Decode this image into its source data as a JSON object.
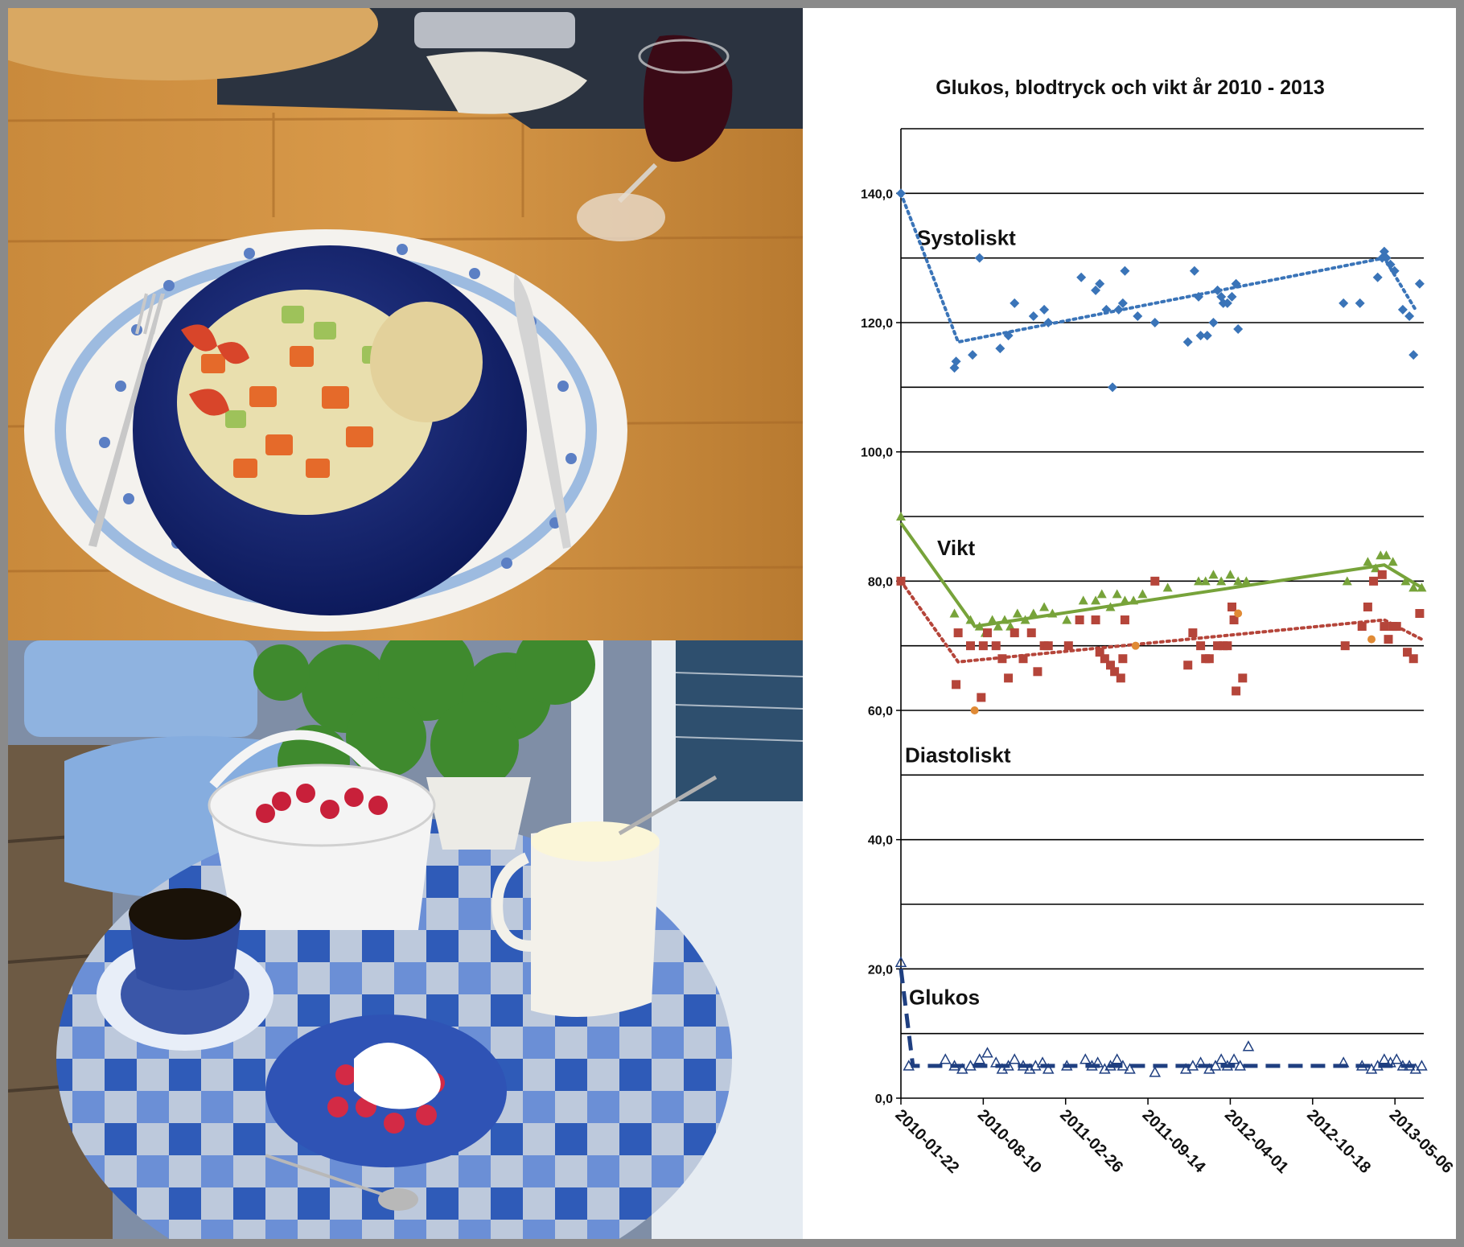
{
  "photos": {
    "top": {
      "subject": "dinner-plate"
    },
    "bottom": {
      "subject": "raspberries-and-coffee"
    }
  },
  "chart_data": {
    "type": "scatter",
    "title": "Glukos, blodtryck och vikt år 2010 - 2013",
    "xlabel": "",
    "ylabel": "",
    "ylim": [
      0,
      150
    ],
    "y_ticks": [
      "0,0",
      "20,0",
      "40,0",
      "60,0",
      "80,0",
      "100,0",
      "120,0",
      "140,0"
    ],
    "x_ticks": [
      "2010-01-22",
      "2010-08-10",
      "2011-02-26",
      "2011-09-14",
      "2012-04-01",
      "2012-10-18",
      "2013-05-06"
    ],
    "xlim": [
      "2010-01-22",
      "2013-07-15"
    ],
    "grid": true,
    "annotations": [
      "Systoliskt",
      "Vikt",
      "Diastoliskt",
      "Glukos"
    ],
    "colors": {
      "systolic": "#3a74b8",
      "weight": "#77a33a",
      "diastolic": "#b5453a",
      "diastolic_alt": "#e08a35",
      "glucose": "#1f3f80",
      "grid": "#000000"
    },
    "series": [
      {
        "key": "systolic",
        "marker": "diamond",
        "x": [
          "2010-01-22",
          "2010-06-01",
          "2010-06-05",
          "2010-07-15",
          "2010-08-01",
          "2010-09-20",
          "2010-10-10",
          "2010-10-25",
          "2010-12-10",
          "2011-01-05",
          "2011-01-15",
          "2011-04-05",
          "2011-05-10",
          "2011-05-20",
          "2011-06-05",
          "2011-06-20",
          "2011-07-05",
          "2011-07-15",
          "2011-07-20",
          "2011-08-20",
          "2011-10-01",
          "2011-12-20",
          "2012-01-05",
          "2012-01-15",
          "2012-01-20",
          "2012-02-05",
          "2012-02-20",
          "2012-03-01",
          "2012-03-10",
          "2012-03-15",
          "2012-03-25",
          "2012-04-05",
          "2012-04-15",
          "2012-04-20",
          "2013-01-01",
          "2013-02-10",
          "2013-03-25",
          "2013-04-05",
          "2013-04-10",
          "2013-04-15",
          "2013-04-25",
          "2013-05-05",
          "2013-05-25",
          "2013-06-10",
          "2013-06-20",
          "2013-07-05"
        ],
        "values": [
          140,
          113,
          114,
          115,
          130,
          116,
          118,
          123,
          121,
          122,
          120,
          127,
          125,
          126,
          122,
          110,
          122,
          123,
          128,
          121,
          120,
          117,
          128,
          124,
          118,
          118,
          120,
          125,
          124,
          123,
          123,
          124,
          126,
          119,
          123,
          123,
          127,
          130,
          131,
          130,
          129,
          128,
          122,
          121,
          115,
          126
        ]
      },
      {
        "key": "systolic_trend",
        "line_style": "dotted",
        "x": [
          "2010-01-22",
          "2010-06-10",
          "2013-04-10",
          "2013-06-25"
        ],
        "values": [
          140,
          117,
          130,
          122
        ]
      },
      {
        "key": "weight",
        "marker": "triangle",
        "x": [
          "2010-01-22",
          "2010-06-01",
          "2010-07-10",
          "2010-08-01",
          "2010-08-15",
          "2010-09-01",
          "2010-09-15",
          "2010-10-01",
          "2010-10-15",
          "2010-11-01",
          "2010-11-20",
          "2010-12-10",
          "2011-01-05",
          "2011-01-25",
          "2011-03-01",
          "2011-04-10",
          "2011-05-10",
          "2011-05-25",
          "2011-06-15",
          "2011-07-01",
          "2011-07-20",
          "2011-08-10",
          "2011-09-01",
          "2011-11-01",
          "2012-01-15",
          "2012-02-01",
          "2012-02-20",
          "2012-03-10",
          "2012-04-01",
          "2012-04-20",
          "2012-05-10",
          "2013-01-10",
          "2013-03-01",
          "2013-03-20",
          "2013-04-01",
          "2013-04-15",
          "2013-05-01",
          "2013-06-01",
          "2013-06-20",
          "2013-07-10"
        ],
        "values": [
          90,
          75,
          74,
          73,
          72,
          74,
          73,
          74,
          73,
          75,
          74,
          75,
          76,
          75,
          74,
          77,
          77,
          78,
          76,
          78,
          77,
          77,
          78,
          79,
          80,
          80,
          81,
          80,
          81,
          80,
          80,
          80,
          83,
          82,
          84,
          84,
          83,
          80,
          79,
          79
        ]
      },
      {
        "key": "weight_trend",
        "line_style": "solid",
        "x": [
          "2010-01-22",
          "2010-07-20",
          "2013-04-10",
          "2013-07-10"
        ],
        "values": [
          89,
          73,
          82.5,
          79
        ]
      },
      {
        "key": "diastolic",
        "marker": "square",
        "x": [
          "2010-01-22",
          "2010-06-05",
          "2010-06-10",
          "2010-07-10",
          "2010-08-05",
          "2010-08-10",
          "2010-08-20",
          "2010-09-10",
          "2010-09-25",
          "2010-10-10",
          "2010-10-25",
          "2010-11-15",
          "2010-12-05",
          "2010-12-20",
          "2011-01-05",
          "2011-01-15",
          "2011-03-05",
          "2011-04-01",
          "2011-05-10",
          "2011-05-20",
          "2011-06-01",
          "2011-06-15",
          "2011-06-25",
          "2011-07-10",
          "2011-07-15",
          "2011-07-20",
          "2011-10-01",
          "2011-12-20",
          "2012-01-01",
          "2012-01-20",
          "2012-02-01",
          "2012-02-10",
          "2012-03-01",
          "2012-03-15",
          "2012-03-25",
          "2012-04-05",
          "2012-04-10",
          "2012-04-15",
          "2012-05-01",
          "2013-01-05",
          "2013-02-15",
          "2013-03-01",
          "2013-03-15",
          "2013-04-05",
          "2013-04-10",
          "2013-04-20",
          "2013-05-01",
          "2013-05-10",
          "2013-06-05",
          "2013-06-20",
          "2013-07-05"
        ],
        "values": [
          80,
          64,
          72,
          70,
          62,
          70,
          72,
          70,
          68,
          65,
          72,
          68,
          72,
          66,
          70,
          70,
          70,
          74,
          74,
          69,
          68,
          67,
          66,
          65,
          68,
          74,
          80,
          67,
          72,
          70,
          68,
          68,
          70,
          70,
          70,
          76,
          74,
          63,
          65,
          70,
          73,
          76,
          80,
          81,
          73,
          71,
          73,
          73,
          69,
          68,
          75
        ]
      },
      {
        "key": "diastolic_alt",
        "marker": "circle",
        "x": [
          "2010-07-20",
          "2011-08-15",
          "2012-04-20",
          "2013-03-10"
        ],
        "values": [
          60,
          70,
          75,
          71
        ]
      },
      {
        "key": "diastolic_trend",
        "line_style": "dotted",
        "x": [
          "2010-01-22",
          "2010-06-10",
          "2013-04-10",
          "2013-07-10"
        ],
        "values": [
          80,
          67.5,
          74,
          71
        ]
      },
      {
        "key": "glucose",
        "marker": "triangle-open",
        "x": [
          "2010-01-22",
          "2010-02-10",
          "2010-05-10",
          "2010-06-01",
          "2010-06-20",
          "2010-07-10",
          "2010-08-01",
          "2010-08-20",
          "2010-09-10",
          "2010-09-25",
          "2010-10-10",
          "2010-10-25",
          "2010-11-15",
          "2010-12-01",
          "2010-12-15",
          "2011-01-01",
          "2011-01-15",
          "2011-03-01",
          "2011-04-15",
          "2011-05-01",
          "2011-05-15",
          "2011-06-01",
          "2011-06-15",
          "2011-07-01",
          "2011-07-15",
          "2011-08-01",
          "2011-10-01",
          "2011-12-15",
          "2012-01-01",
          "2012-01-20",
          "2012-02-10",
          "2012-02-25",
          "2012-03-10",
          "2012-03-25",
          "2012-04-10",
          "2012-04-25",
          "2012-05-15",
          "2013-01-01",
          "2013-02-15",
          "2013-03-10",
          "2013-03-25",
          "2013-04-10",
          "2013-04-25",
          "2013-05-10",
          "2013-05-25",
          "2013-06-10",
          "2013-06-25",
          "2013-07-10"
        ],
        "values": [
          21,
          5,
          6,
          5,
          4.5,
          5,
          6,
          7,
          5.5,
          4.5,
          5,
          6,
          5,
          4.5,
          5,
          5.5,
          4.5,
          5,
          6,
          5,
          5.5,
          4.5,
          5,
          6,
          5,
          4.5,
          4,
          4.5,
          5,
          5.5,
          4.5,
          5,
          6,
          5,
          6,
          5,
          8,
          5.5,
          5,
          4.5,
          5,
          6,
          5.5,
          6,
          5,
          5,
          4.5,
          5
        ]
      },
      {
        "key": "glucose_trend",
        "line_style": "dashed",
        "x": [
          "2010-01-22",
          "2010-02-20",
          "2013-07-10"
        ],
        "values": [
          20,
          5,
          5
        ]
      }
    ]
  }
}
